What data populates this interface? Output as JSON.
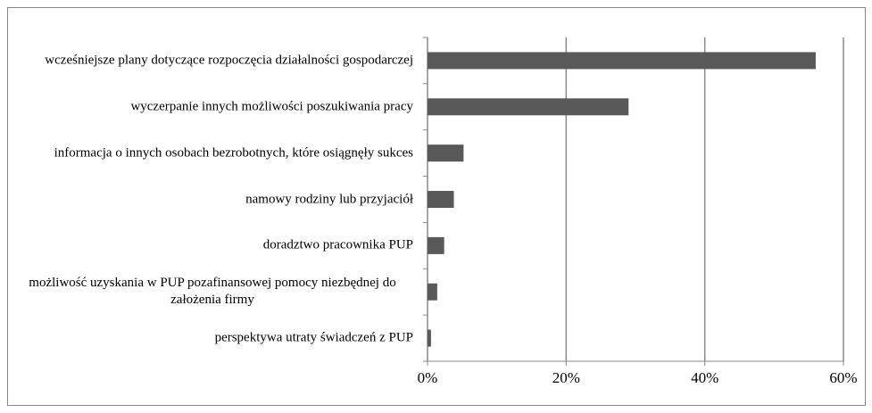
{
  "chart_data": {
    "type": "bar",
    "orientation": "horizontal",
    "categories": [
      "wcześniejsze plany dotyczące rozpoczęcia działalności gospodarczej",
      "wyczerpanie innych możliwości poszukiwania pracy",
      "informacja o innych osobach bezrobotnych, które osiągnęły sukces",
      "namowy rodziny lub przyjaciół",
      "doradztwo pracownika PUP",
      "możliwość uzyskania w PUP pozafinansowej pomocy niezbędnej do założenia firmy",
      "perspektywa utraty świadczeń z PUP"
    ],
    "values": [
      56,
      29,
      5.2,
      3.8,
      2.4,
      1.4,
      0.5
    ],
    "color": "#595959",
    "xlim": [
      0,
      60
    ],
    "xticks": [
      {
        "value": 0,
        "label": "0%"
      },
      {
        "value": 20,
        "label": "20%"
      },
      {
        "value": 40,
        "label": "40%"
      },
      {
        "value": 60,
        "label": "60%"
      }
    ],
    "grid": true
  }
}
